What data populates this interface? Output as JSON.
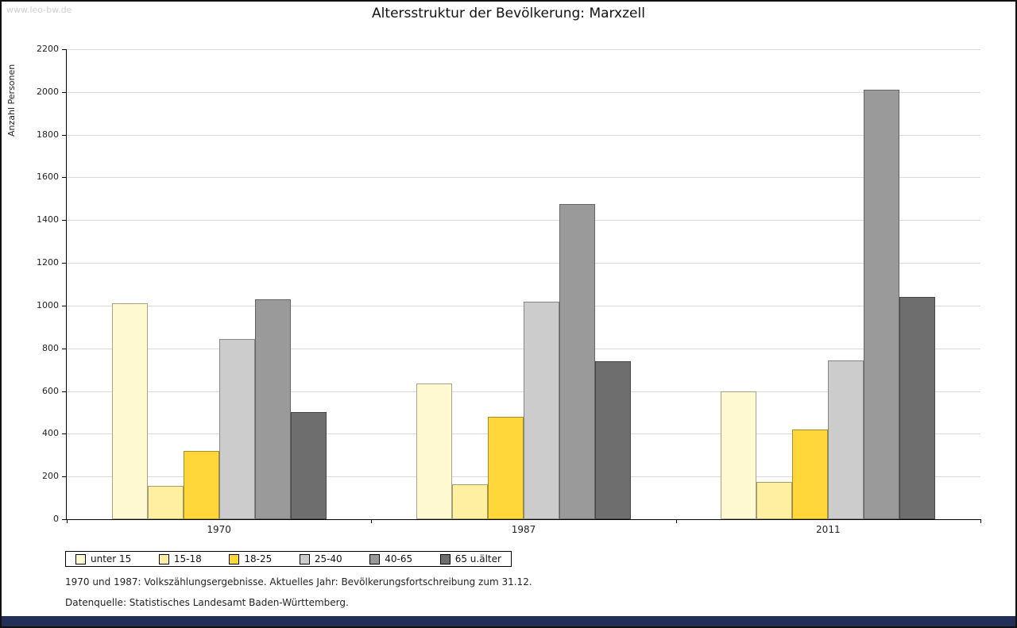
{
  "watermark": "www.leo-bw.de",
  "title": "Altersstruktur der Bevölkerung: Marxzell",
  "chart_data": {
    "type": "bar",
    "title": "Altersstruktur der Bevölkerung: Marxzell",
    "xlabel": "",
    "ylabel": "Anzahl Personen",
    "ylim": [
      0,
      2200
    ],
    "ytick_step": 200,
    "grid": true,
    "legend_position": "bottom",
    "categories": [
      "1970",
      "1987",
      "2011"
    ],
    "series": [
      {
        "name": "unter 15",
        "color": "#FFF9D2",
        "values": [
          1010,
          635,
          600
        ]
      },
      {
        "name": "15-18",
        "color": "#FFEFA0",
        "values": [
          155,
          165,
          175
        ]
      },
      {
        "name": "18-25",
        "color": "#FFD73A",
        "values": [
          320,
          480,
          420
        ]
      },
      {
        "name": "25-40",
        "color": "#CCCCCC",
        "values": [
          845,
          1020,
          745
        ]
      },
      {
        "name": "40-65",
        "color": "#9A9A9A",
        "values": [
          1030,
          1475,
          2010
        ]
      },
      {
        "name": "65 u.älter",
        "color": "#6E6E6E",
        "values": [
          500,
          740,
          1040
        ]
      }
    ]
  },
  "footer": {
    "note1": "1970 und 1987: Volkszählungsergebnisse. Aktuelles Jahr: Bevölkerungsfortschreibung zum 31.12.",
    "note2": "Datenquelle: Statistisches Landesamt Baden-Württemberg."
  }
}
